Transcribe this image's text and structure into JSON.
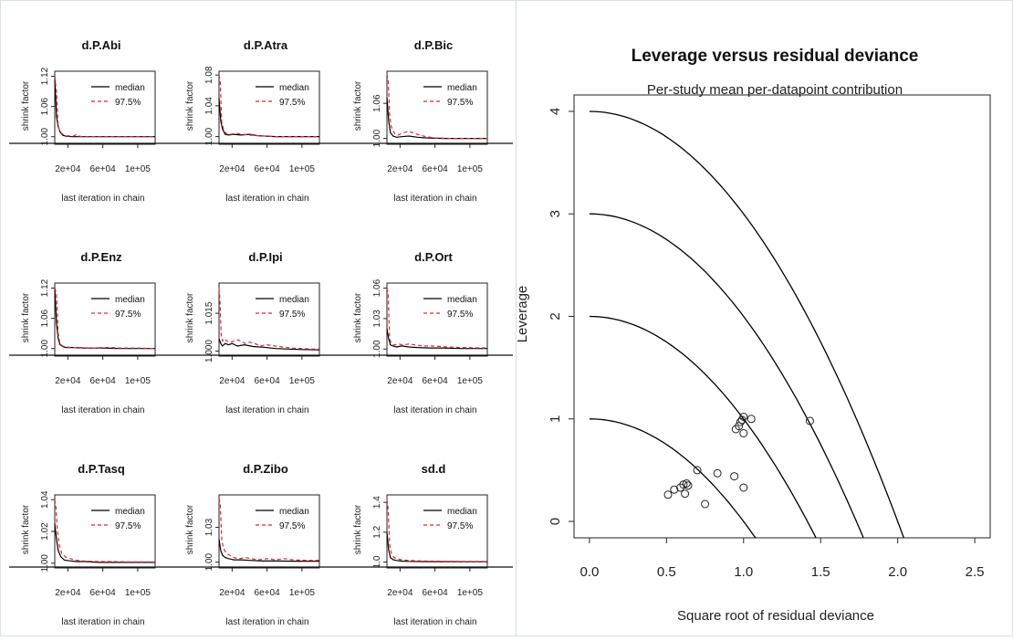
{
  "chart_data": [
    {
      "type": "line",
      "title": "d.P.Abi",
      "xlabel": "last iteration in chain",
      "ylabel": "shrink factor",
      "x_ticks": [
        "2e+04",
        "6e+04",
        "1e+05"
      ],
      "x_tick_values": [
        20000,
        60000,
        100000
      ],
      "y_ticks": [
        "1.00",
        "1.06",
        "1.12"
      ],
      "y_tick_values": [
        1.0,
        1.06,
        1.12
      ],
      "xlim": [
        5000,
        120000
      ],
      "ylim": [
        0.985,
        1.13
      ],
      "legend_position": "top-right",
      "series": [
        {
          "name": "median",
          "color": "#000000",
          "dash": "solid",
          "x": [
            5000,
            7000,
            9000,
            11000,
            14000,
            18000,
            25000,
            35000,
            50000,
            70000,
            90000,
            120000
          ],
          "y": [
            1.12,
            1.04,
            1.02,
            1.01,
            1.003,
            1.001,
            1.0,
            1.0,
            1.0,
            1.0,
            1.0,
            1.0
          ]
        },
        {
          "name": "97.5%",
          "color": "#e3262a",
          "dash": "dashed",
          "x": [
            5000,
            7000,
            9000,
            11000,
            14000,
            18000,
            25000,
            30000,
            35000,
            50000,
            70000,
            90000,
            120000
          ],
          "y": [
            1.12,
            1.09,
            1.02,
            1.01,
            1.005,
            1.002,
            1.001,
            1.004,
            1.0,
            1.0,
            1.0,
            1.0,
            1.0
          ]
        }
      ]
    },
    {
      "type": "line",
      "title": "d.P.Atra",
      "xlabel": "last iteration in chain",
      "ylabel": "shrink factor",
      "x_ticks": [
        "2e+04",
        "6e+04",
        "1e+05"
      ],
      "x_tick_values": [
        20000,
        60000,
        100000
      ],
      "y_ticks": [
        "1.00",
        "1.04",
        "1.08"
      ],
      "y_tick_values": [
        1.0,
        1.04,
        1.08
      ],
      "xlim": [
        5000,
        120000
      ],
      "ylim": [
        0.99,
        1.085
      ],
      "legend_position": "top-right",
      "series": [
        {
          "name": "median",
          "color": "#000000",
          "dash": "solid",
          "x": [
            5000,
            7000,
            9000,
            12000,
            16000,
            22000,
            30000,
            40000,
            50000,
            70000,
            90000,
            120000
          ],
          "y": [
            1.05,
            1.02,
            1.01,
            1.003,
            1.002,
            1.003,
            1.002,
            1.003,
            1.001,
            1.0,
            1.0,
            1.0
          ]
        },
        {
          "name": "97.5%",
          "color": "#e3262a",
          "dash": "dashed",
          "x": [
            5000,
            6500,
            8000,
            10000,
            13000,
            18000,
            25000,
            32000,
            40000,
            50000,
            70000,
            90000,
            120000
          ],
          "y": [
            1.08,
            1.07,
            1.02,
            1.01,
            1.004,
            1.003,
            1.004,
            1.003,
            1.002,
            1.001,
            1.0,
            1.0,
            1.0
          ]
        }
      ]
    },
    {
      "type": "line",
      "title": "d.P.Bic",
      "xlabel": "last iteration in chain",
      "ylabel": "shrink factor",
      "x_ticks": [
        "2e+04",
        "6e+04",
        "1e+05"
      ],
      "x_tick_values": [
        20000,
        60000,
        100000
      ],
      "y_ticks": [
        "1.00",
        "1.06"
      ],
      "y_tick_values": [
        1.0,
        1.06
      ],
      "xlim": [
        5000,
        120000
      ],
      "ylim": [
        0.99,
        1.115
      ],
      "legend_position": "top-right",
      "series": [
        {
          "name": "median",
          "color": "#000000",
          "dash": "solid",
          "x": [
            5000,
            7000,
            9000,
            12000,
            16000,
            22000,
            30000,
            40000,
            50000,
            70000,
            120000
          ],
          "y": [
            1.07,
            1.03,
            1.01,
            1.004,
            1.002,
            1.003,
            1.004,
            1.002,
            1.001,
            1.0,
            1.0
          ]
        },
        {
          "name": "97.5%",
          "color": "#e3262a",
          "dash": "dashed",
          "x": [
            5000,
            6500,
            8000,
            10000,
            14000,
            18000,
            24000,
            30000,
            36000,
            42000,
            50000,
            60000,
            80000,
            120000
          ],
          "y": [
            1.11,
            1.1,
            1.04,
            1.02,
            1.008,
            1.006,
            1.01,
            1.012,
            1.009,
            1.006,
            1.003,
            1.001,
            1.0,
            1.0
          ]
        }
      ]
    },
    {
      "type": "line",
      "title": "d.P.Enz",
      "xlabel": "last iteration in chain",
      "ylabel": "shrink factor",
      "x_ticks": [
        "2e+04",
        "6e+04",
        "1e+05"
      ],
      "x_tick_values": [
        20000,
        60000,
        100000
      ],
      "y_ticks": [
        "1.00",
        "1.06",
        "1.12"
      ],
      "y_tick_values": [
        1.0,
        1.06,
        1.12
      ],
      "xlim": [
        5000,
        120000
      ],
      "ylim": [
        0.985,
        1.13
      ],
      "legend_position": "top-right",
      "series": [
        {
          "name": "median",
          "color": "#000000",
          "dash": "solid",
          "x": [
            5000,
            7000,
            9000,
            11000,
            14000,
            18000,
            25000,
            40000,
            60000,
            80000,
            100000,
            120000
          ],
          "y": [
            1.12,
            1.05,
            1.02,
            1.008,
            1.004,
            1.002,
            1.002,
            1.001,
            1.001,
            1.0,
            1.0,
            1.0
          ]
        },
        {
          "name": "97.5%",
          "color": "#e3262a",
          "dash": "dashed",
          "x": [
            5000,
            7000,
            9000,
            11000,
            14000,
            18000,
            25000,
            35000,
            50000,
            60000,
            70000,
            80000,
            100000,
            120000
          ],
          "y": [
            1.12,
            1.11,
            1.03,
            1.01,
            1.005,
            1.003,
            1.002,
            1.002,
            1.001,
            1.002,
            1.002,
            1.001,
            1.001,
            1.0
          ]
        }
      ]
    },
    {
      "type": "line",
      "title": "d.P.Ipi",
      "xlabel": "last iteration in chain",
      "ylabel": "shrink factor",
      "x_ticks": [
        "2e+04",
        "6e+04",
        "1e+05"
      ],
      "x_tick_values": [
        20000,
        60000,
        100000
      ],
      "y_ticks": [
        "1.000",
        "1.015"
      ],
      "y_tick_values": [
        1.0,
        1.015
      ],
      "xlim": [
        5000,
        120000
      ],
      "ylim": [
        0.998,
        1.027
      ],
      "legend_position": "top-right",
      "series": [
        {
          "name": "median",
          "color": "#000000",
          "dash": "solid",
          "x": [
            5000,
            7000,
            9000,
            12000,
            16000,
            20000,
            26000,
            34000,
            44000,
            56000,
            70000,
            85000,
            100000,
            120000
          ],
          "y": [
            1.005,
            1.003,
            1.002,
            1.003,
            1.0025,
            1.003,
            1.002,
            1.0025,
            1.0018,
            1.0015,
            1.001,
            1.0008,
            1.0006,
            1.0005
          ]
        },
        {
          "name": "97.5%",
          "color": "#e3262a",
          "dash": "dashed",
          "x": [
            5000,
            6000,
            7500,
            9000,
            11000,
            14000,
            18000,
            22000,
            26000,
            30000,
            35000,
            40000,
            46000,
            52000,
            60000,
            70000,
            80000,
            90000,
            100000,
            110000,
            120000
          ],
          "y": [
            1.025,
            1.02,
            1.006,
            1.004,
            1.005,
            1.004,
            1.0035,
            1.004,
            1.0045,
            1.004,
            1.003,
            1.0035,
            1.003,
            1.002,
            1.0025,
            1.002,
            1.0015,
            1.0012,
            1.001,
            1.0008,
            1.0008
          ]
        }
      ]
    },
    {
      "type": "line",
      "title": "d.P.Ort",
      "xlabel": "last iteration in chain",
      "ylabel": "shrink factor",
      "x_ticks": [
        "2e+04",
        "6e+04",
        "1e+05"
      ],
      "x_tick_values": [
        20000,
        60000,
        100000
      ],
      "y_ticks": [
        "1.00",
        "1.03",
        "1.06"
      ],
      "y_tick_values": [
        1.0,
        1.03,
        1.06
      ],
      "xlim": [
        5000,
        120000
      ],
      "ylim": [
        0.993,
        1.065
      ],
      "legend_position": "top-right",
      "series": [
        {
          "name": "median",
          "color": "#000000",
          "dash": "solid",
          "x": [
            5000,
            7000,
            9000,
            12000,
            16000,
            22000,
            30000,
            40000,
            55000,
            70000,
            90000,
            120000
          ],
          "y": [
            1.02,
            1.01,
            1.004,
            1.003,
            1.002,
            1.003,
            1.002,
            1.0015,
            1.001,
            1.001,
            1.0005,
            1.0005
          ]
        },
        {
          "name": "97.5%",
          "color": "#e3262a",
          "dash": "dashed",
          "x": [
            5000,
            6500,
            8000,
            10000,
            13000,
            18000,
            24000,
            30000,
            38000,
            46000,
            55000,
            65000,
            75000,
            90000,
            105000,
            120000
          ],
          "y": [
            1.06,
            1.055,
            1.01,
            1.006,
            1.004,
            1.005,
            1.004,
            1.005,
            1.004,
            1.003,
            1.003,
            1.0025,
            1.002,
            1.0015,
            1.0012,
            1.001
          ]
        }
      ]
    },
    {
      "type": "line",
      "title": "d.P.Tasq",
      "xlabel": "last iteration in chain",
      "ylabel": "shrink factor",
      "x_ticks": [
        "2e+04",
        "6e+04",
        "1e+05"
      ],
      "x_tick_values": [
        20000,
        60000,
        100000
      ],
      "y_ticks": [
        "1.00",
        "1.02",
        "1.04"
      ],
      "y_tick_values": [
        1.0,
        1.02,
        1.04
      ],
      "xlim": [
        5000,
        120000
      ],
      "ylim": [
        0.997,
        1.043
      ],
      "legend_position": "top-right",
      "series": [
        {
          "name": "median",
          "color": "#000000",
          "dash": "solid",
          "x": [
            5000,
            7000,
            9000,
            12000,
            16000,
            22000,
            30000,
            40000,
            55000,
            70000,
            90000,
            120000
          ],
          "y": [
            1.025,
            1.015,
            1.008,
            1.004,
            1.002,
            1.0015,
            1.001,
            1.001,
            1.0005,
            1.0005,
            1.0005,
            1.0005
          ]
        },
        {
          "name": "97.5%",
          "color": "#e3262a",
          "dash": "dashed",
          "x": [
            5000,
            6500,
            8000,
            10000,
            13000,
            17000,
            22000,
            28000,
            35000,
            45000,
            55000,
            70000,
            90000,
            120000
          ],
          "y": [
            1.04,
            1.035,
            1.02,
            1.012,
            1.006,
            1.004,
            1.003,
            1.002,
            1.0015,
            1.0012,
            1.001,
            1.001,
            1.0008,
            1.0008
          ]
        }
      ]
    },
    {
      "type": "line",
      "title": "d.P.Zibo",
      "xlabel": "last iteration in chain",
      "ylabel": "shrink factor",
      "x_ticks": [
        "2e+04",
        "6e+04",
        "1e+05"
      ],
      "x_tick_values": [
        20000,
        60000,
        100000
      ],
      "y_ticks": [
        "1.00",
        "1.03"
      ],
      "y_tick_values": [
        1.0,
        1.03
      ],
      "xlim": [
        5000,
        120000
      ],
      "ylim": [
        0.995,
        1.058
      ],
      "legend_position": "top-right",
      "series": [
        {
          "name": "median",
          "color": "#000000",
          "dash": "solid",
          "x": [
            5000,
            7000,
            9000,
            12000,
            16000,
            22000,
            30000,
            40000,
            55000,
            70000,
            90000,
            120000
          ],
          "y": [
            1.02,
            1.01,
            1.006,
            1.004,
            1.003,
            1.002,
            1.002,
            1.0015,
            1.001,
            1.001,
            1.0008,
            1.0008
          ]
        },
        {
          "name": "97.5%",
          "color": "#e3262a",
          "dash": "dashed",
          "x": [
            5000,
            6500,
            8000,
            10000,
            13000,
            17000,
            22000,
            28000,
            35000,
            42000,
            50000,
            60000,
            70000,
            80000,
            90000,
            105000,
            120000
          ],
          "y": [
            1.055,
            1.05,
            1.02,
            1.012,
            1.008,
            1.006,
            1.004,
            1.003,
            1.004,
            1.003,
            1.002,
            1.003,
            1.002,
            1.003,
            1.002,
            1.0015,
            1.0015
          ]
        }
      ]
    },
    {
      "type": "line",
      "title": "sd.d",
      "xlabel": "last iteration in chain",
      "ylabel": "shrink factor",
      "x_ticks": [
        "2e+04",
        "6e+04",
        "1e+05"
      ],
      "x_tick_values": [
        20000,
        60000,
        100000
      ],
      "y_ticks": [
        "1.0",
        "1.2",
        "1.4"
      ],
      "y_tick_values": [
        1.0,
        1.2,
        1.4
      ],
      "xlim": [
        5000,
        120000
      ],
      "ylim": [
        0.96,
        1.45
      ],
      "legend_position": "top-right",
      "series": [
        {
          "name": "median",
          "color": "#000000",
          "dash": "solid",
          "x": [
            5000,
            7000,
            9000,
            12000,
            16000,
            22000,
            30000,
            45000,
            60000,
            80000,
            100000,
            120000
          ],
          "y": [
            1.2,
            1.08,
            1.03,
            1.015,
            1.01,
            1.006,
            1.004,
            1.003,
            1.002,
            1.002,
            1.0015,
            1.0015
          ]
        },
        {
          "name": "97.5%",
          "color": "#e3262a",
          "dash": "dashed",
          "x": [
            5000,
            6500,
            8000,
            10000,
            13000,
            17000,
            22000,
            30000,
            40000,
            55000,
            70000,
            90000,
            120000
          ],
          "y": [
            1.42,
            1.35,
            1.12,
            1.06,
            1.03,
            1.02,
            1.015,
            1.01,
            1.008,
            1.006,
            1.005,
            1.004,
            1.004
          ]
        }
      ]
    },
    {
      "type": "scatter",
      "title": "Leverage versus residual deviance",
      "subtitle": "Per-study mean per-datapoint contribution",
      "xlabel": "Square root of residual deviance",
      "ylabel": "Leverage",
      "x_ticks": [
        "0.0",
        "0.5",
        "1.0",
        "1.5",
        "2.0",
        "2.5"
      ],
      "x_tick_values": [
        0,
        0.5,
        1.0,
        1.5,
        2.0,
        2.5
      ],
      "y_ticks": [
        "0",
        "1",
        "2",
        "3",
        "4"
      ],
      "y_tick_values": [
        0,
        1,
        2,
        3,
        4
      ],
      "xlim": [
        -0.1,
        2.6
      ],
      "ylim": [
        -0.16,
        4.16
      ],
      "curves": [
        {
          "c": 1,
          "color": "#000000"
        },
        {
          "c": 2,
          "color": "#000000"
        },
        {
          "c": 3,
          "color": "#000000"
        },
        {
          "c": 4,
          "color": "#000000"
        }
      ],
      "points": [
        {
          "x": 0.51,
          "y": 0.26
        },
        {
          "x": 0.55,
          "y": 0.31
        },
        {
          "x": 0.59,
          "y": 0.33
        },
        {
          "x": 0.61,
          "y": 0.36
        },
        {
          "x": 0.62,
          "y": 0.27
        },
        {
          "x": 0.63,
          "y": 0.37
        },
        {
          "x": 0.64,
          "y": 0.35
        },
        {
          "x": 0.7,
          "y": 0.5
        },
        {
          "x": 0.75,
          "y": 0.17
        },
        {
          "x": 0.83,
          "y": 0.47
        },
        {
          "x": 0.94,
          "y": 0.44
        },
        {
          "x": 0.95,
          "y": 0.9
        },
        {
          "x": 0.97,
          "y": 0.93
        },
        {
          "x": 0.98,
          "y": 0.97
        },
        {
          "x": 0.99,
          "y": 0.99
        },
        {
          "x": 1.0,
          "y": 1.02
        },
        {
          "x": 1.0,
          "y": 0.86
        },
        {
          "x": 1.0,
          "y": 0.33
        },
        {
          "x": 1.05,
          "y": 1.0
        },
        {
          "x": 1.43,
          "y": 0.98
        }
      ]
    }
  ]
}
